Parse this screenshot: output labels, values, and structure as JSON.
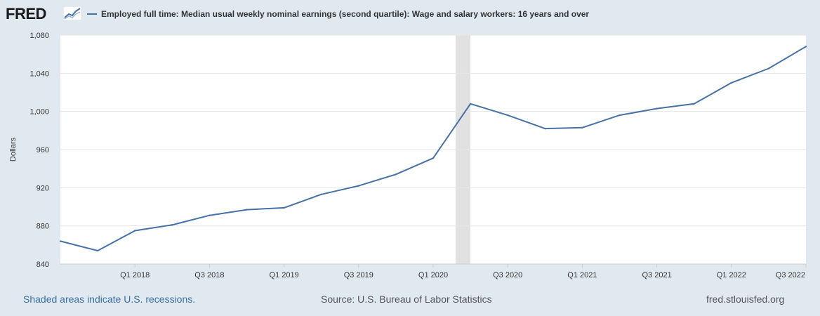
{
  "header": {
    "logo_text": "FRED",
    "logo_icon": "trend-chart-icon"
  },
  "legend": {
    "label": "Employed full time: Median usual weekly nominal earnings (second quartile): Wage and salary workers: 16 years and over"
  },
  "footer": {
    "recession_note": "Shaded areas indicate U.S. recessions.",
    "source": "Source: U.S. Bureau of Labor Statistics",
    "site": "fred.stlouisfed.org"
  },
  "colors": {
    "background": "#e1e9f0",
    "plot_background": "#ffffff",
    "series_line": "#4572a7",
    "recession_shade": "#e1e1e1",
    "gridline": "#e6e6e6"
  },
  "chart_data": {
    "type": "line",
    "title": "",
    "xlabel": "",
    "ylabel": "Dollars",
    "ylim": [
      840,
      1080
    ],
    "y_ticks": [
      840,
      880,
      920,
      960,
      1000,
      1040,
      1080
    ],
    "y_tick_labels": [
      "840",
      "880",
      "920",
      "960",
      "1,000",
      "1,040",
      "1,080"
    ],
    "grid": true,
    "legend_position": "top-left",
    "x": [
      "Q3 2017",
      "Q4 2017",
      "Q1 2018",
      "Q2 2018",
      "Q3 2018",
      "Q4 2018",
      "Q1 2019",
      "Q2 2019",
      "Q3 2019",
      "Q4 2019",
      "Q1 2020",
      "Q2 2020",
      "Q3 2020",
      "Q4 2020",
      "Q1 2021",
      "Q2 2021",
      "Q3 2021",
      "Q4 2021",
      "Q1 2022",
      "Q2 2022",
      "Q3 2022"
    ],
    "x_tick_labels": [
      "Q1 2018",
      "Q3 2018",
      "Q1 2019",
      "Q3 2019",
      "Q1 2020",
      "Q3 2020",
      "Q1 2021",
      "Q3 2021",
      "Q1 2022",
      "Q3 2022"
    ],
    "recession_periods": [
      [
        "Q1 2020",
        "Q2 2020"
      ]
    ],
    "series": [
      {
        "name": "Employed full time: Median usual weekly nominal earnings (second quartile): Wage and salary workers: 16 years and over",
        "values": [
          864,
          854,
          875,
          881,
          891,
          897,
          899,
          913,
          922,
          934,
          951,
          1008,
          996,
          982,
          983,
          996,
          1003,
          1008,
          1030,
          1045,
          1068
        ]
      }
    ]
  }
}
